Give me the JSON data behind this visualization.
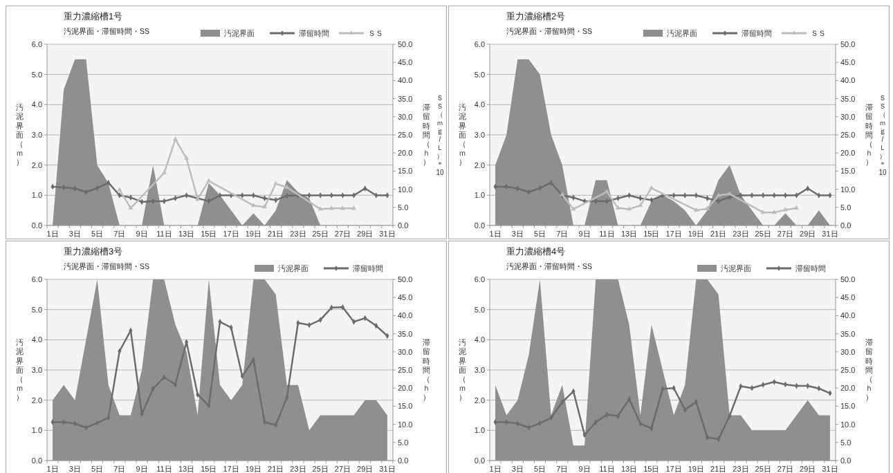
{
  "chart_data": [
    {
      "type": "area",
      "title": "重力濃縮槽1号",
      "subtitle": "汚泥界面・滞留時間・SS",
      "ylabel": "汚泥界面（ｍ）",
      "y2label": "滞留時間（ｈ）",
      "annotations": [
        "ＳＳ（ｍｇ/Ｌ）＊10"
      ],
      "categories": [
        "1日",
        null,
        "3日",
        null,
        "5日",
        null,
        "7日",
        null,
        "9日",
        null,
        "11日",
        null,
        "13日",
        null,
        "15日",
        null,
        "17日",
        null,
        "19日",
        null,
        "21日",
        null,
        "23日",
        null,
        "25日",
        null,
        "27日",
        null,
        "29日",
        null,
        "31日"
      ],
      "ylim": [
        0,
        6
      ],
      "yticks": [
        {
          "value": 0,
          "label": "0.0"
        },
        {
          "value": 1,
          "label": "1.0"
        },
        {
          "value": 2,
          "label": "2.0"
        },
        {
          "value": 3,
          "label": "3.0"
        },
        {
          "value": 4,
          "label": "4.0"
        },
        {
          "value": 5,
          "label": "5.0"
        },
        {
          "value": 6,
          "label": "6.0"
        }
      ],
      "y2lim": [
        0,
        50
      ],
      "y2ticks": [
        {
          "value": 0,
          "label": "0.0"
        },
        {
          "value": 5,
          "label": "5.0"
        },
        {
          "value": 10,
          "label": "10.0"
        },
        {
          "value": 15,
          "label": "15.0"
        },
        {
          "value": 20,
          "label": "20.0"
        },
        {
          "value": 25,
          "label": "25.0"
        },
        {
          "value": 30,
          "label": "30.0"
        },
        {
          "value": 35,
          "label": "35.0"
        },
        {
          "value": 40,
          "label": "40.0"
        },
        {
          "value": 45,
          "label": "45.0"
        },
        {
          "value": 50,
          "label": "50.0"
        }
      ],
      "grid": "y",
      "legend": "top right",
      "series": [
        {
          "name": "汚泥界面",
          "color": "#8e8f90",
          "values": [
            0,
            4.5,
            5.5,
            5.5,
            2.0,
            1.4,
            0,
            0,
            0,
            2.0,
            0,
            0,
            0,
            0,
            1.4,
            1.0,
            0.5,
            0,
            0.4,
            0,
            0.5,
            1.5,
            1.1,
            0.9,
            0,
            0,
            0,
            0,
            0,
            0,
            0
          ]
        },
        {
          "name": "滞留時間",
          "type": "line",
          "axis": "y2",
          "marker": "diamond",
          "color": "#6b6b6b",
          "values": [
            10.7,
            10.5,
            10.2,
            9.2,
            10.3,
            11.8,
            8.3,
            7.7,
            6.5,
            6.7,
            6.7,
            7.5,
            8.3,
            7.5,
            6.7,
            8.3,
            8.3,
            8.3,
            8.3,
            7.5,
            7.0,
            8.2,
            8.3,
            8.3,
            8.3,
            8.3,
            8.3,
            8.3,
            10.2,
            8.3,
            8.3
          ]
        },
        {
          "name": "ＳＳ",
          "type": "line",
          "axis": "y2",
          "marker": "triangle",
          "color": "#bdbdbd",
          "values": [
            null,
            null,
            null,
            null,
            null,
            null,
            9.8,
            4.8,
            null,
            null,
            14.5,
            23.8,
            18.5,
            7.3,
            12.3,
            null,
            null,
            null,
            5.5,
            5.1,
            11.5,
            10.5,
            null,
            null,
            4.5,
            4.7,
            4.7,
            4.7,
            null,
            null,
            null
          ]
        }
      ]
    },
    {
      "type": "area",
      "title": "重力濃縮槽2号",
      "subtitle": "汚泥界面・滞留時間・SS",
      "ylabel": "汚泥界面（ｍ）",
      "y2label": "滞留時間（ｈ）",
      "annotations": [
        "ＳＳ（ｍｇ/Ｌ）＊10"
      ],
      "categories": [
        "1日",
        null,
        "3日",
        null,
        "5日",
        null,
        "7日",
        null,
        "9日",
        null,
        "11日",
        null,
        "13日",
        null,
        "15日",
        null,
        "17日",
        null,
        "19日",
        null,
        "21日",
        null,
        "23日",
        null,
        "25日",
        null,
        "27日",
        null,
        "29日",
        null,
        "31日"
      ],
      "ylim": [
        0,
        6
      ],
      "yticks": [
        {
          "value": 0,
          "label": "0.0"
        },
        {
          "value": 1,
          "label": "1.0"
        },
        {
          "value": 2,
          "label": "2.0"
        },
        {
          "value": 3,
          "label": "3.0"
        },
        {
          "value": 4,
          "label": "4.0"
        },
        {
          "value": 5,
          "label": "5.0"
        },
        {
          "value": 6,
          "label": "6.0"
        }
      ],
      "y2lim": [
        0,
        50
      ],
      "y2ticks": [
        {
          "value": 0,
          "label": "0.0"
        },
        {
          "value": 5,
          "label": "5.0"
        },
        {
          "value": 10,
          "label": "10.0"
        },
        {
          "value": 15,
          "label": "15.0"
        },
        {
          "value": 20,
          "label": "20.0"
        },
        {
          "value": 25,
          "label": "25.0"
        },
        {
          "value": 30,
          "label": "30.0"
        },
        {
          "value": 35,
          "label": "35.0"
        },
        {
          "value": 40,
          "label": "40.0"
        },
        {
          "value": 45,
          "label": "45.0"
        },
        {
          "value": 50,
          "label": "50.0"
        }
      ],
      "grid": "y",
      "legend": "top right",
      "series": [
        {
          "name": "汚泥界面",
          "color": "#8e8f90",
          "values": [
            2.0,
            3.0,
            5.5,
            5.5,
            5.0,
            3.0,
            2.0,
            0,
            0,
            1.5,
            1.5,
            0,
            0,
            0,
            0.8,
            1.0,
            0.8,
            0.5,
            0,
            0.5,
            1.5,
            2.0,
            1.0,
            0.5,
            0,
            0,
            0.4,
            0,
            0,
            0.5,
            0
          ]
        },
        {
          "name": "滞留時間",
          "type": "line",
          "axis": "y2",
          "marker": "diamond",
          "color": "#6b6b6b",
          "values": [
            10.7,
            10.7,
            10.2,
            9.2,
            10.3,
            11.8,
            8.3,
            7.7,
            6.7,
            6.7,
            6.7,
            7.5,
            8.3,
            7.5,
            7.0,
            8.3,
            8.3,
            8.3,
            8.3,
            7.5,
            6.7,
            7.8,
            8.3,
            8.3,
            8.3,
            8.3,
            8.3,
            8.3,
            10.2,
            8.3,
            8.3
          ]
        },
        {
          "name": "ＳＳ",
          "type": "line",
          "axis": "y2",
          "marker": "triangle",
          "color": "#bdbdbd",
          "values": [
            null,
            null,
            null,
            null,
            null,
            null,
            8.5,
            4.5,
            null,
            null,
            9.3,
            4.8,
            4.5,
            5.5,
            10.3,
            null,
            null,
            null,
            4.2,
            4.6,
            8.3,
            8.7,
            null,
            null,
            3.6,
            3.6,
            4.3,
            4.8,
            null,
            null,
            null
          ]
        }
      ]
    },
    {
      "type": "area",
      "title": "重力濃縮槽3号",
      "subtitle": "汚泥界面・滞留時間・SS",
      "ylabel": "汚泥界面（ｍ）",
      "y2label": "滞留時間（ｈ）",
      "categories": [
        "1日",
        null,
        "3日",
        null,
        "5日",
        null,
        "7日",
        null,
        "9日",
        null,
        "11日",
        null,
        "13日",
        null,
        "15日",
        null,
        "17日",
        null,
        "19日",
        null,
        "21日",
        null,
        "23日",
        null,
        "25日",
        null,
        "27日",
        null,
        "29日",
        null,
        "31日"
      ],
      "ylim": [
        0,
        6
      ],
      "yticks": [
        {
          "value": 0,
          "label": "0.0"
        },
        {
          "value": 1,
          "label": "1.0"
        },
        {
          "value": 2,
          "label": "2.0"
        },
        {
          "value": 3,
          "label": "3.0"
        },
        {
          "value": 4,
          "label": "4.0"
        },
        {
          "value": 5,
          "label": "5.0"
        },
        {
          "value": 6,
          "label": "6.0"
        }
      ],
      "y2lim": [
        0,
        50
      ],
      "y2ticks": [
        {
          "value": 0,
          "label": "0.0"
        },
        {
          "value": 5,
          "label": "5.0"
        },
        {
          "value": 10,
          "label": "10.0"
        },
        {
          "value": 15,
          "label": "15.0"
        },
        {
          "value": 20,
          "label": "20.0"
        },
        {
          "value": 25,
          "label": "25.0"
        },
        {
          "value": 30,
          "label": "30.0"
        },
        {
          "value": 35,
          "label": "35.0"
        },
        {
          "value": 40,
          "label": "40.0"
        },
        {
          "value": 45,
          "label": "45.0"
        },
        {
          "value": 50,
          "label": "50.0"
        }
      ],
      "grid": "y",
      "legend": "top right",
      "series": [
        {
          "name": "汚泥界面",
          "color": "#8e8f90",
          "values": [
            2.0,
            2.5,
            2.0,
            4.0,
            6.0,
            2.5,
            1.5,
            1.5,
            3.0,
            6.0,
            6.0,
            4.5,
            3.6,
            1.5,
            6.0,
            2.5,
            2.0,
            2.5,
            6.0,
            6.0,
            5.5,
            2.5,
            2.5,
            1.0,
            1.5,
            1.5,
            1.5,
            1.5,
            2.0,
            2.0,
            1.5
          ]
        },
        {
          "name": "滞留時間",
          "type": "line",
          "axis": "y2",
          "marker": "diamond",
          "color": "#6b6b6b",
          "values": [
            10.6,
            10.6,
            10.2,
            9.1,
            10.4,
            11.8,
            30.2,
            35.9,
            12.8,
            19.8,
            23.0,
            21.0,
            32.7,
            18.2,
            15.2,
            38.3,
            36.7,
            23.3,
            27.8,
            10.6,
            9.8,
            17.4,
            38.0,
            37.4,
            38.8,
            42.2,
            42.3,
            38.3,
            39.3,
            37.2,
            34.4
          ]
        }
      ]
    },
    {
      "type": "area",
      "title": "重力濃縮槽4号",
      "subtitle": "汚泥界面・滞留時間・SS",
      "ylabel": "汚泥界面（ｍ）",
      "y2label": "滞留時間（ｈ）",
      "categories": [
        "1日",
        null,
        "3日",
        null,
        "5日",
        null,
        "7日",
        null,
        "9日",
        null,
        "11日",
        null,
        "13日",
        null,
        "15日",
        null,
        "17日",
        null,
        "19日",
        null,
        "21日",
        null,
        "23日",
        null,
        "25日",
        null,
        "27日",
        null,
        "29日",
        null,
        "31日"
      ],
      "ylim": [
        0,
        6
      ],
      "yticks": [
        {
          "value": 0,
          "label": "0.0"
        },
        {
          "value": 1,
          "label": "1.0"
        },
        {
          "value": 2,
          "label": "2.0"
        },
        {
          "value": 3,
          "label": "3.0"
        },
        {
          "value": 4,
          "label": "4.0"
        },
        {
          "value": 5,
          "label": "5.0"
        },
        {
          "value": 6,
          "label": "6.0"
        }
      ],
      "y2lim": [
        0,
        50
      ],
      "y2ticks": [
        {
          "value": 0,
          "label": "0.0"
        },
        {
          "value": 5,
          "label": "5.0"
        },
        {
          "value": 10,
          "label": "10.0"
        },
        {
          "value": 15,
          "label": "15.0"
        },
        {
          "value": 20,
          "label": "20.0"
        },
        {
          "value": 25,
          "label": "25.0"
        },
        {
          "value": 30,
          "label": "30.0"
        },
        {
          "value": 35,
          "label": "35.0"
        },
        {
          "value": 40,
          "label": "40.0"
        },
        {
          "value": 45,
          "label": "45.0"
        },
        {
          "value": 50,
          "label": "50.0"
        }
      ],
      "grid": "y",
      "legend": "top right",
      "series": [
        {
          "name": "汚泥界面",
          "color": "#8e8f90",
          "values": [
            2.5,
            1.5,
            2.0,
            3.5,
            6.0,
            1.5,
            2.5,
            0.5,
            0.5,
            6.0,
            6.0,
            6.0,
            4.5,
            1.5,
            4.5,
            3.0,
            1.5,
            2.5,
            6.0,
            6.0,
            5.5,
            1.5,
            1.5,
            1.0,
            1.0,
            1.0,
            1.0,
            1.5,
            2.0,
            1.5,
            1.5
          ]
        },
        {
          "name": "滞留時間",
          "type": "line",
          "axis": "y2",
          "marker": "diamond",
          "color": "#6b6b6b",
          "values": [
            10.6,
            10.6,
            10.2,
            9.1,
            10.3,
            11.8,
            16.1,
            19.1,
            7.1,
            10.6,
            12.7,
            12.3,
            17.0,
            10.2,
            8.9,
            19.8,
            20.0,
            14.0,
            16.2,
            6.4,
            5.9,
            12.3,
            20.5,
            20.0,
            20.9,
            21.7,
            21.0,
            20.6,
            20.6,
            19.9,
            18.6
          ]
        }
      ]
    }
  ]
}
